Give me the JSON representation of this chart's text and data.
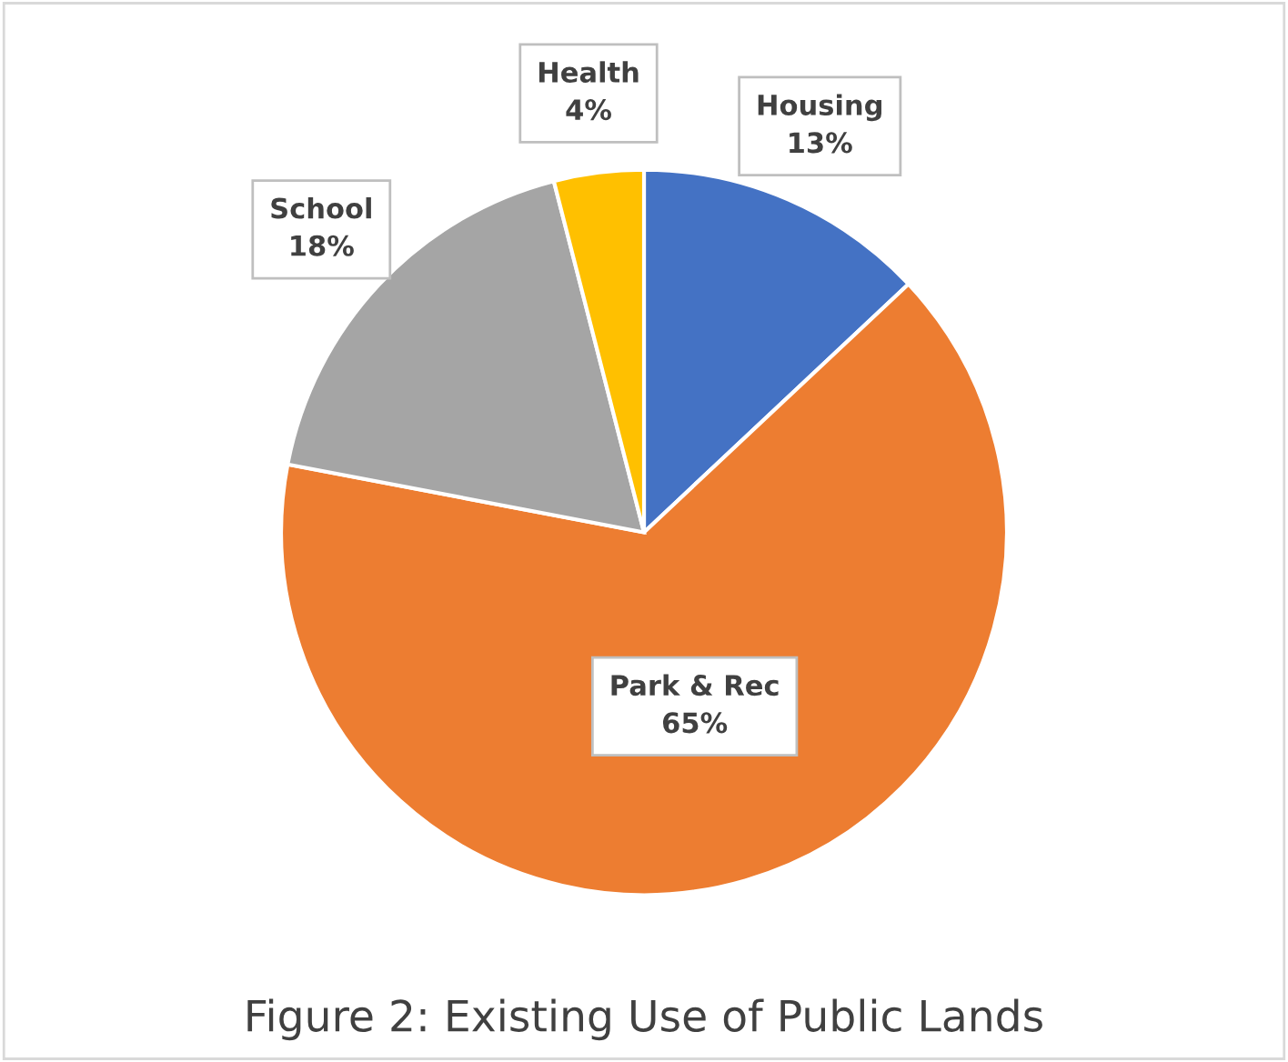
{
  "chart_data": {
    "type": "pie",
    "title": "Figure 2: Existing Use of Public Lands",
    "categories": [
      "Housing",
      "Park & Rec",
      "School",
      "Health"
    ],
    "values": [
      13,
      65,
      18,
      4
    ],
    "colors": [
      "#4472c4",
      "#ed7d31",
      "#a5a5a5",
      "#ffc000"
    ],
    "value_labels": [
      "13%",
      "65%",
      "18%",
      "4%"
    ],
    "legend": false
  }
}
